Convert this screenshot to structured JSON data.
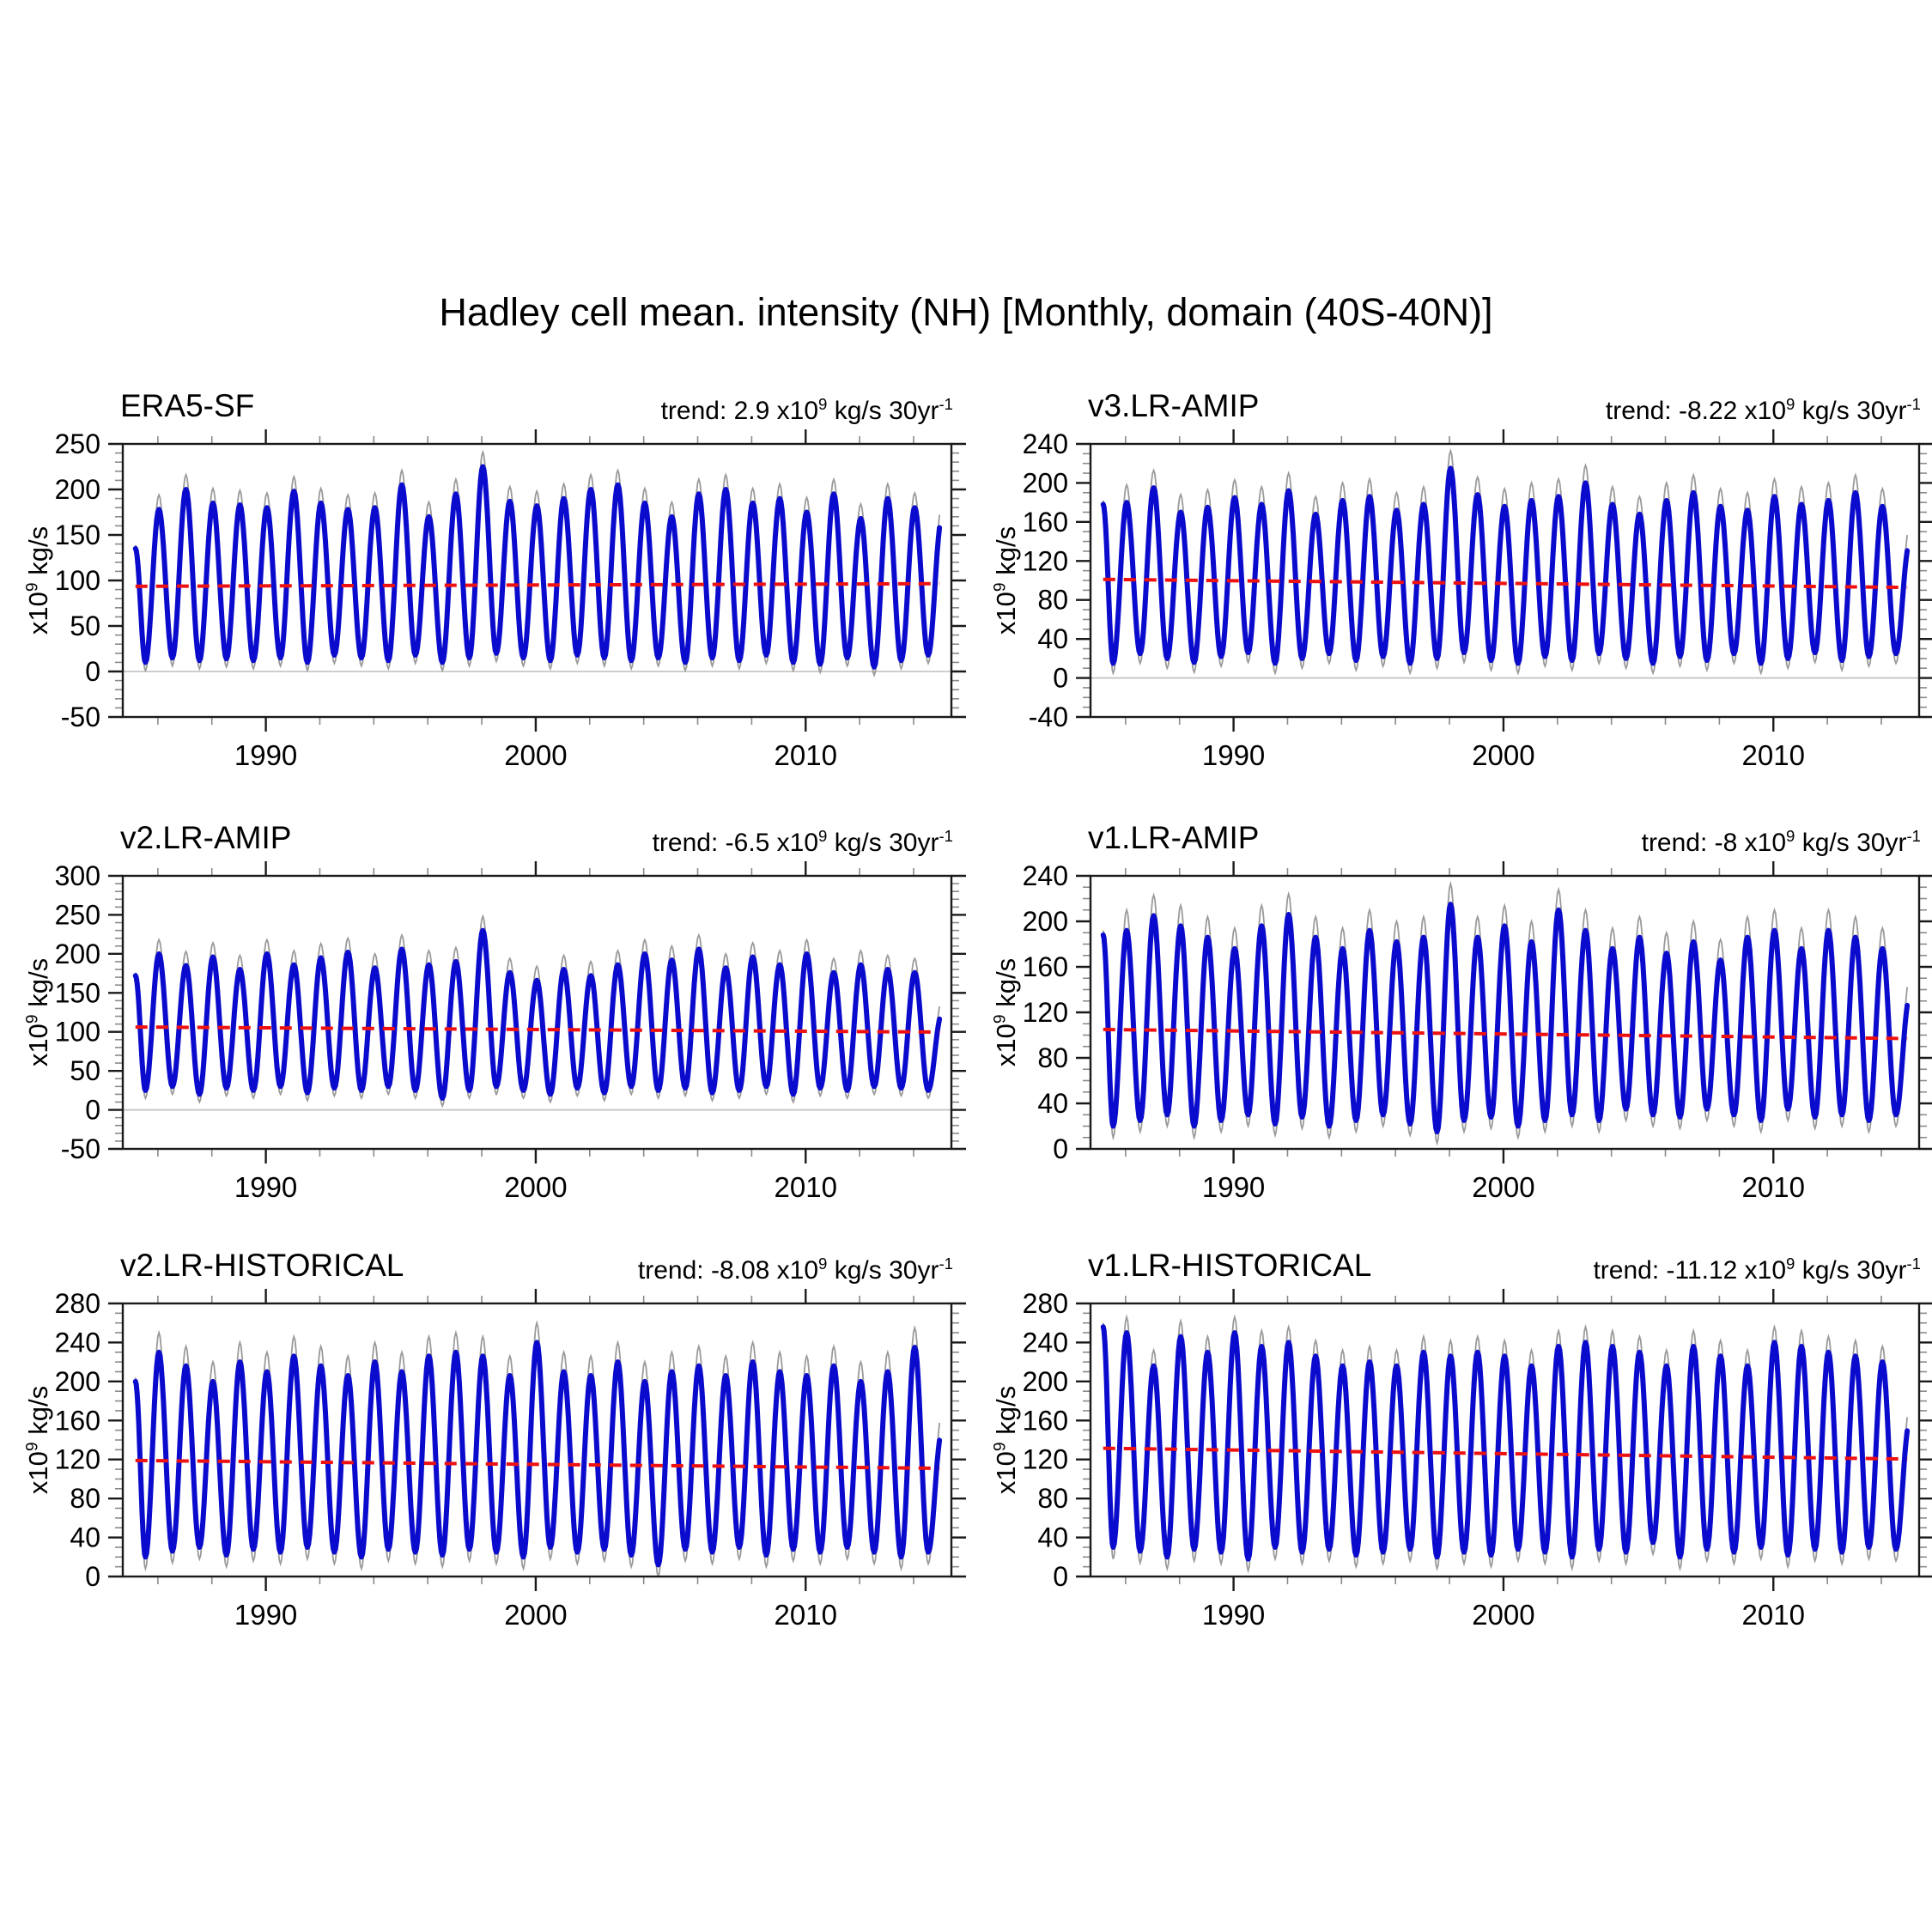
{
  "chart_data": {
    "type": "line",
    "suptitle": "Hadley cell mean. intensity (NH) [Monthly, domain (40S-40N)]",
    "ylabel": {
      "base": "x10",
      "exp": "9",
      "unit": " kg/s"
    },
    "trend_format": {
      "label": "trend:",
      "times": "x10",
      "exp": "9",
      "unit": " kg/s 30yr",
      "exp2": "-1"
    },
    "x_axis": {
      "start": 1984.7,
      "end": 2015.4,
      "major_ticks": [
        1990,
        2000,
        2010
      ],
      "major_labels": [
        "1990",
        "2000",
        "2010"
      ],
      "minor_start": 1986,
      "minor_end": 2014,
      "minor_step": 2
    },
    "y_minor_step": 10,
    "colors": {
      "series": "#0b0bcd",
      "raw": "#9a9a9a",
      "trend_line": "#ee1111",
      "axis": "#1a1a1a",
      "minor_tick": "#8a8a8a",
      "zero_line": "#bdbdbd"
    },
    "panels": [
      {
        "name": "ERA5-SF",
        "trend_value": "2.9",
        "trend_num": 2.9,
        "mean": 95,
        "ylim": [
          -50,
          250
        ],
        "yticks": [
          -50,
          0,
          50,
          100,
          150,
          200,
          250
        ],
        "data": {
          "start_year": 1985,
          "start_value": 135,
          "end_value": 160,
          "peaks": [
            178,
            200,
            185,
            183,
            180,
            198,
            185,
            178,
            180,
            205,
            170,
            195,
            225,
            187,
            182,
            190,
            200,
            205,
            185,
            170,
            195,
            200,
            185,
            190,
            175,
            195,
            168,
            190,
            180
          ],
          "troughs": [
            10,
            15,
            12,
            14,
            12,
            15,
            10,
            18,
            15,
            12,
            18,
            10,
            15,
            20,
            15,
            12,
            18,
            15,
            12,
            15,
            10,
            15,
            12,
            18,
            10,
            8,
            15,
            5,
            12,
            18
          ],
          "raw_peak_extra": 16,
          "raw_trough_extra": 9
        }
      },
      {
        "name": "v3.LR-AMIP",
        "trend_value": "-8.22",
        "trend_num": -8.22,
        "mean": 97,
        "ylim": [
          -40,
          240
        ],
        "yticks": [
          -40,
          0,
          40,
          80,
          120,
          160,
          200,
          240
        ],
        "data": {
          "start_year": 1985,
          "start_value": 178,
          "end_value": 130,
          "peaks": [
            180,
            195,
            170,
            175,
            185,
            178,
            192,
            168,
            182,
            186,
            172,
            178,
            215,
            188,
            176,
            182,
            186,
            200,
            178,
            168,
            182,
            190,
            176,
            172,
            186,
            178,
            182,
            190,
            176
          ],
          "troughs": [
            15,
            25,
            20,
            16,
            22,
            26,
            15,
            20,
            25,
            18,
            22,
            15,
            20,
            26,
            18,
            15,
            22,
            18,
            25,
            20,
            15,
            22,
            18,
            25,
            15,
            20,
            26,
            18,
            22,
            25
          ],
          "raw_peak_extra": 18,
          "raw_trough_extra": 10
        }
      },
      {
        "name": "v2.LR-AMIP",
        "trend_value": "-6.5",
        "trend_num": -6.5,
        "mean": 103,
        "ylim": [
          -50,
          300
        ],
        "yticks": [
          -50,
          0,
          50,
          100,
          150,
          200,
          250,
          300
        ],
        "data": {
          "start_year": 1985,
          "start_value": 172,
          "end_value": 115,
          "peaks": [
            200,
            185,
            196,
            180,
            200,
            186,
            195,
            202,
            182,
            206,
            186,
            190,
            230,
            176,
            166,
            180,
            172,
            186,
            200,
            192,
            206,
            182,
            196,
            186,
            200,
            176,
            186,
            180,
            176
          ],
          "troughs": [
            25,
            30,
            20,
            28,
            25,
            30,
            22,
            28,
            25,
            30,
            25,
            15,
            25,
            30,
            25,
            20,
            28,
            22,
            30,
            25,
            28,
            22,
            25,
            30,
            20,
            28,
            25,
            30,
            28,
            25
          ],
          "raw_peak_extra": 18,
          "raw_trough_extra": 10
        }
      },
      {
        "name": "v1.LR-AMIP",
        "trend_value": "-8",
        "trend_num": -8,
        "mean": 101,
        "ylim": [
          0,
          240
        ],
        "yticks": [
          0,
          40,
          80,
          120,
          160,
          200,
          240
        ],
        "data": {
          "start_year": 1985,
          "start_value": 188,
          "end_value": 125,
          "peaks": [
            192,
            205,
            196,
            186,
            176,
            196,
            206,
            186,
            176,
            192,
            182,
            186,
            215,
            186,
            196,
            182,
            210,
            192,
            176,
            186,
            172,
            182,
            166,
            186,
            192,
            176,
            192,
            186,
            176
          ],
          "troughs": [
            20,
            25,
            30,
            20,
            25,
            30,
            22,
            28,
            20,
            25,
            30,
            22,
            15,
            25,
            28,
            20,
            25,
            30,
            25,
            35,
            30,
            28,
            35,
            30,
            25,
            35,
            28,
            30,
            25,
            30
          ],
          "raw_peak_extra": 18,
          "raw_trough_extra": 10
        }
      },
      {
        "name": "v2.LR-HISTORICAL",
        "trend_value": "-8.08",
        "trend_num": -8.08,
        "mean": 115,
        "ylim": [
          0,
          280
        ],
        "yticks": [
          0,
          40,
          80,
          120,
          160,
          200,
          240,
          280
        ],
        "data": {
          "start_year": 1985,
          "start_value": 200,
          "end_value": 140,
          "peaks": [
            230,
            216,
            200,
            220,
            210,
            226,
            216,
            206,
            220,
            210,
            226,
            230,
            226,
            206,
            240,
            210,
            206,
            220,
            200,
            210,
            216,
            206,
            220,
            210,
            206,
            216,
            200,
            210,
            235
          ],
          "troughs": [
            20,
            26,
            30,
            22,
            28,
            25,
            30,
            25,
            20,
            28,
            25,
            22,
            28,
            25,
            20,
            30,
            25,
            28,
            22,
            12,
            28,
            25,
            30,
            22,
            28,
            25,
            30,
            25,
            20,
            25
          ],
          "raw_peak_extra": 20,
          "raw_trough_extra": 12
        }
      },
      {
        "name": "v1.LR-HISTORICAL",
        "trend_value": "-11.12",
        "trend_num": -11.12,
        "mean": 126,
        "ylim": [
          0,
          280
        ],
        "yticks": [
          0,
          40,
          80,
          120,
          160,
          200,
          240,
          280
        ],
        "data": {
          "start_year": 1985,
          "start_value": 256,
          "end_value": 150,
          "peaks": [
            250,
            216,
            246,
            230,
            250,
            236,
            240,
            226,
            216,
            220,
            216,
            230,
            226,
            230,
            226,
            216,
            236,
            240,
            236,
            230,
            216,
            236,
            226,
            216,
            240,
            236,
            230,
            226,
            220
          ],
          "troughs": [
            30,
            26,
            20,
            28,
            25,
            18,
            30,
            25,
            28,
            22,
            25,
            28,
            20,
            25,
            22,
            28,
            25,
            20,
            28,
            25,
            35,
            20,
            28,
            25,
            30,
            22,
            28,
            25,
            30,
            28
          ],
          "raw_peak_extra": 16,
          "raw_trough_extra": 12
        }
      }
    ]
  }
}
